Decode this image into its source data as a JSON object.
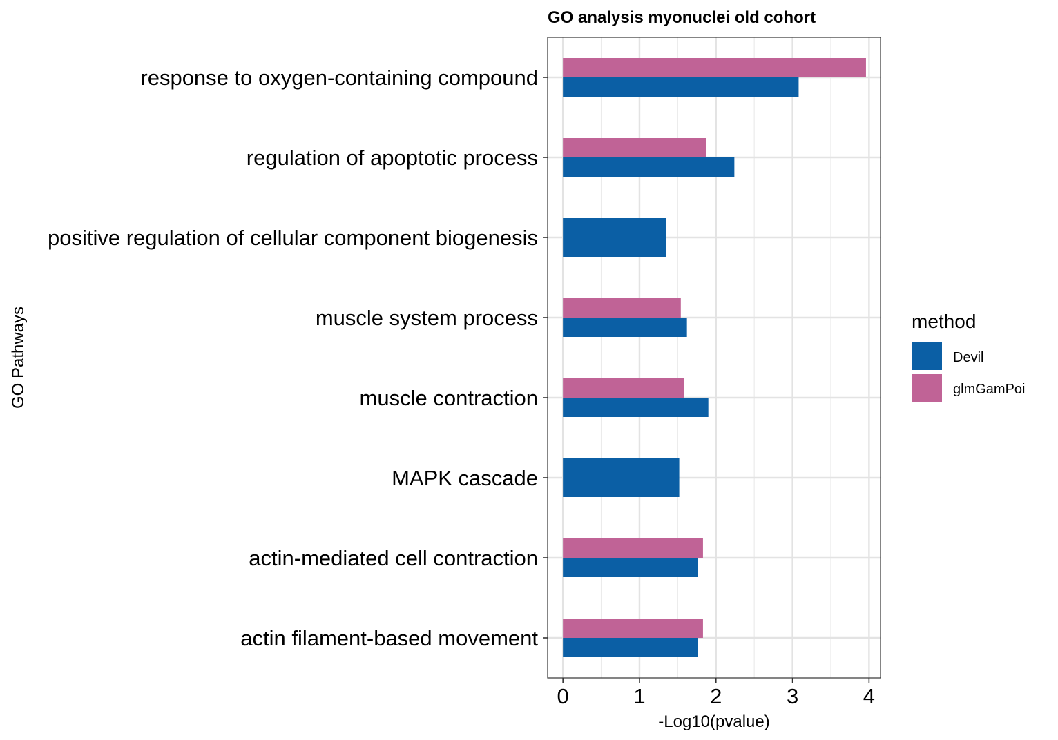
{
  "chart_data": {
    "type": "bar",
    "orientation": "horizontal",
    "title": "GO analysis myonuclei old cohort",
    "xlabel": "-Log10(pvalue)",
    "ylabel": "GO Pathways",
    "xlim": [
      -0.2,
      4.15
    ],
    "xticks": [
      0,
      1,
      2,
      3,
      4
    ],
    "grid": true,
    "legend": {
      "title": "method",
      "placement": "right"
    },
    "categories": [
      "response to oxygen-containing compound",
      "regulation of apoptotic process",
      "positive regulation of cellular component biogenesis",
      "muscle system process",
      "muscle contraction",
      "MAPK cascade",
      "actin-mediated cell contraction",
      "actin filament-based movement"
    ],
    "series": [
      {
        "name": "Devil",
        "color": "#0b5fa5",
        "values": [
          3.08,
          2.24,
          1.35,
          1.62,
          1.9,
          1.52,
          1.76,
          1.76
        ]
      },
      {
        "name": "glmGamPoi",
        "color": "#c06396",
        "values": [
          3.96,
          1.87,
          null,
          1.54,
          1.58,
          null,
          1.83,
          1.83
        ]
      }
    ]
  }
}
